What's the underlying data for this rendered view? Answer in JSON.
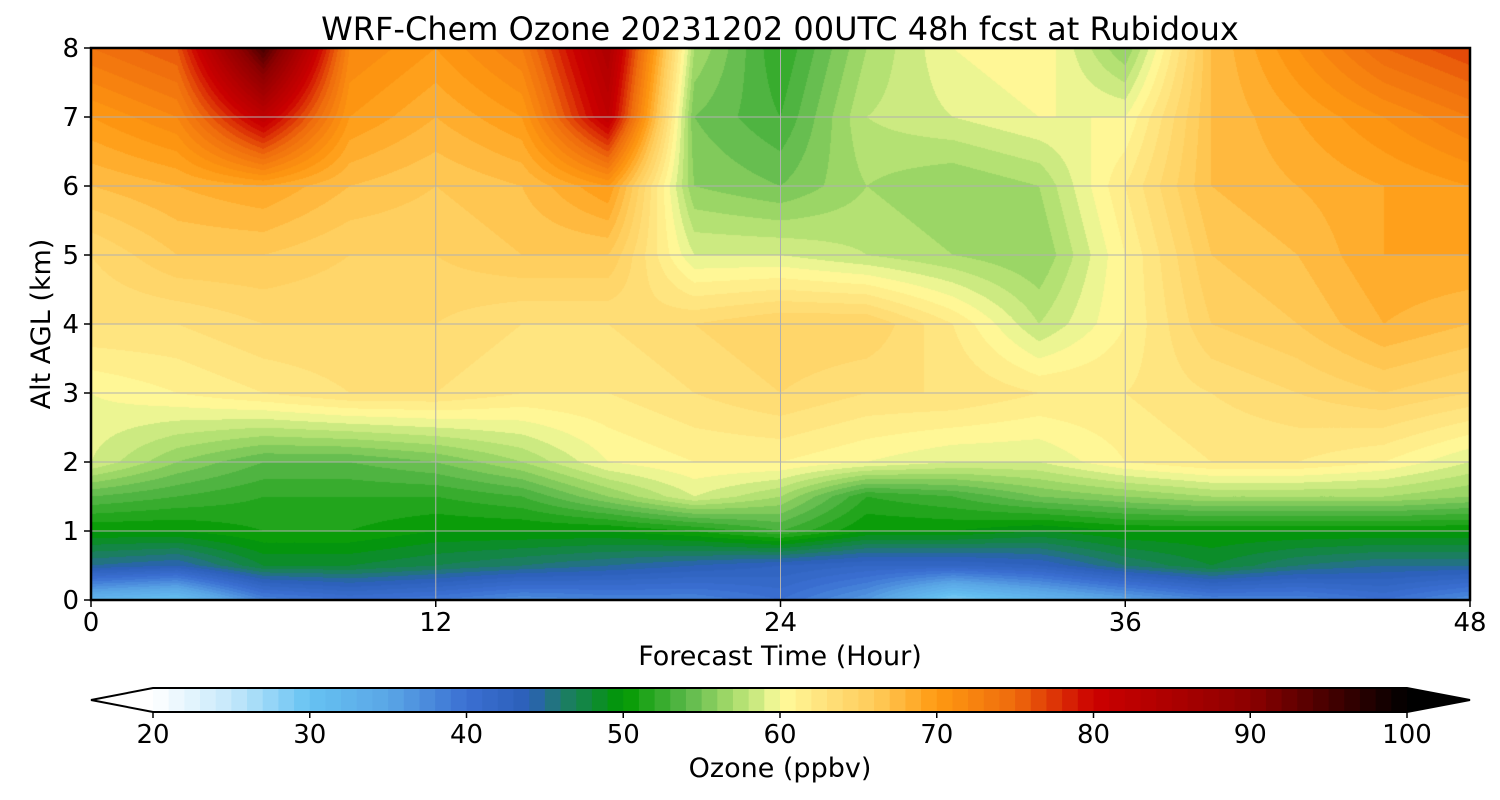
{
  "chart_data": {
    "type": "heatmap",
    "title": "WRF-Chem Ozone  20231202 00UTC 48h fcst at Rubidoux",
    "xlabel": "Forecast Time (Hour)",
    "ylabel": "Alt AGL (km)",
    "xlim": [
      0,
      48
    ],
    "ylim": [
      0,
      8
    ],
    "xticks": [
      "0",
      "12",
      "24",
      "36",
      "48"
    ],
    "yticks": [
      "0",
      "1",
      "2",
      "3",
      "4",
      "5",
      "6",
      "7",
      "8"
    ],
    "grid": true,
    "x": [
      0,
      3,
      6,
      9,
      12,
      15,
      18,
      21,
      24,
      27,
      30,
      33,
      36,
      39,
      42,
      45,
      48
    ],
    "y": [
      0,
      0.5,
      1,
      1.5,
      2,
      3,
      4,
      5,
      6,
      7,
      8
    ],
    "z": [
      [
        32,
        30,
        38,
        40,
        39,
        37,
        38,
        38,
        40,
        36,
        28,
        32,
        35,
        38,
        38,
        40,
        37
      ],
      [
        45,
        44,
        48,
        48,
        47,
        46,
        45,
        44,
        43,
        42,
        42,
        43,
        46,
        48,
        46,
        45,
        45
      ],
      [
        50,
        50,
        51,
        51,
        50,
        50,
        50,
        51,
        53,
        50,
        50,
        49,
        50,
        50,
        50,
        50,
        50
      ],
      [
        54,
        53,
        52,
        52,
        52,
        53,
        56,
        59,
        57,
        52,
        53,
        55,
        56,
        57,
        57,
        57,
        56
      ],
      [
        59,
        56,
        54,
        54,
        55,
        57,
        60,
        61,
        61,
        60,
        59,
        59,
        61,
        62,
        62,
        61,
        59
      ],
      [
        60,
        61,
        62,
        63,
        63,
        62,
        62,
        63,
        64,
        63,
        63,
        62,
        62,
        63,
        64,
        65,
        64
      ],
      [
        63,
        63,
        64,
        64,
        64,
        63,
        63,
        64,
        65,
        65,
        62,
        58,
        61,
        65,
        66,
        68,
        67
      ],
      [
        64,
        66,
        66,
        65,
        65,
        66,
        66,
        59,
        59,
        58,
        57,
        56,
        61,
        66,
        67,
        69,
        69
      ],
      [
        67,
        68,
        69,
        67,
        66,
        67,
        70,
        56,
        55,
        57,
        56,
        57,
        62,
        67,
        68,
        69,
        70
      ],
      [
        70,
        72,
        82,
        70,
        68,
        70,
        82,
        55,
        53,
        58,
        59,
        60,
        60,
        67,
        69,
        71,
        73
      ],
      [
        74,
        76,
        95,
        72,
        70,
        73,
        85,
        57,
        52,
        57,
        60,
        61,
        56,
        67,
        71,
        75,
        77
      ]
    ],
    "colorbar": {
      "label": "Ozone  (ppbv)",
      "min": 20,
      "max": 100,
      "ticks": [
        "20",
        "30",
        "40",
        "50",
        "60",
        "70",
        "80",
        "90",
        "100"
      ],
      "extend": "both",
      "stops": [
        [
          20,
          "#ffffff"
        ],
        [
          25,
          "#c4e8fb"
        ],
        [
          30,
          "#66c2f2"
        ],
        [
          35,
          "#5aa6e6"
        ],
        [
          40,
          "#3b6fd2"
        ],
        [
          44,
          "#2b5fb8"
        ],
        [
          46,
          "#1f7a6e"
        ],
        [
          50,
          "#009900"
        ],
        [
          54,
          "#5ab84a"
        ],
        [
          57,
          "#a8dc6c"
        ],
        [
          59,
          "#d8ee88"
        ],
        [
          60,
          "#fffc9c"
        ],
        [
          63,
          "#ffe07a"
        ],
        [
          66,
          "#ffcc5a"
        ],
        [
          70,
          "#ff9a12"
        ],
        [
          75,
          "#ee6a0c"
        ],
        [
          80,
          "#cc0000"
        ],
        [
          90,
          "#8c0000"
        ],
        [
          100,
          "#000000"
        ]
      ]
    }
  }
}
